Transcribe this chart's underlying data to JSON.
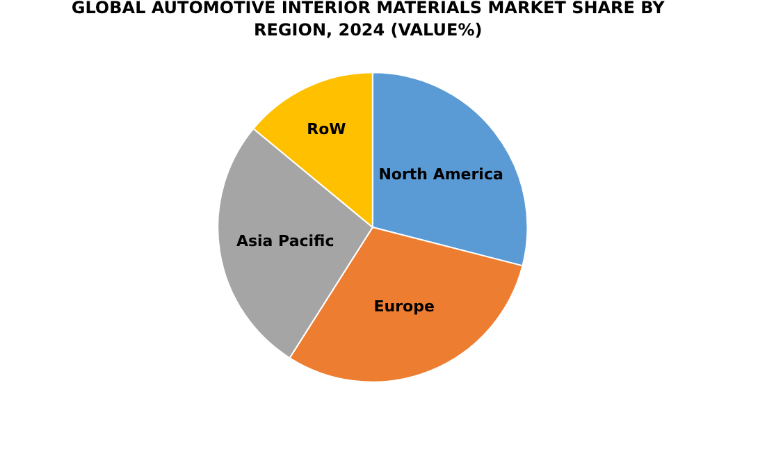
{
  "chart_data": {
    "type": "pie",
    "title": "GLOBAL AUTOMOTIVE INTERIOR MATERIALS MARKET SHARE BY REGION, 2024 (VALUE%)",
    "categories": [
      "North America",
      "Europe",
      "Asia Pacific",
      "RoW"
    ],
    "values": [
      29,
      30,
      27,
      14
    ],
    "colors": [
      "#5b9bd5",
      "#ed7d31",
      "#a5a5a5",
      "#ffc000"
    ],
    "legend": false
  }
}
